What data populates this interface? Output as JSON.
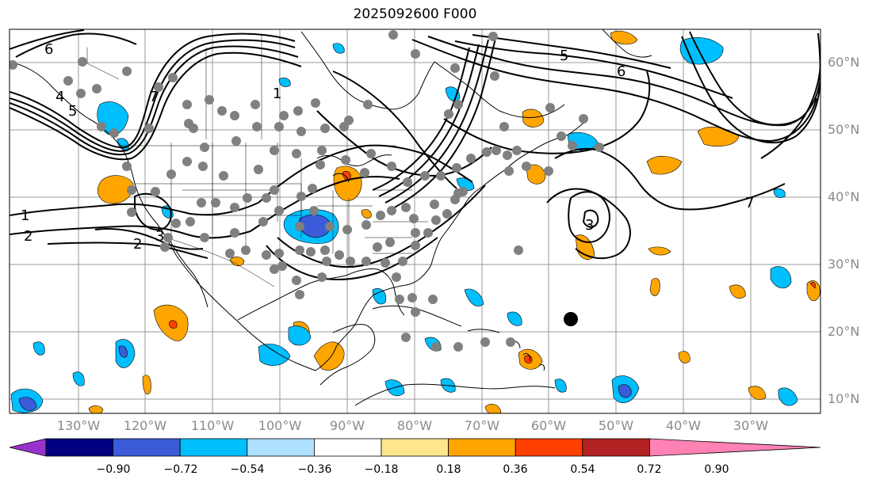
{
  "title": "2025092600 F000",
  "map": {
    "projection": "Mercator",
    "extent": {
      "lon_min": -143,
      "lon_max": -22,
      "lat_min": 8,
      "lat_max": 65
    },
    "lat_labels": [
      "10°N",
      "20°N",
      "30°N",
      "40°N",
      "50°N",
      "60°N"
    ],
    "lon_labels": [
      "130°W",
      "120°W",
      "110°W",
      "100°W",
      "90°W",
      "80°W",
      "70°W",
      "60°W",
      "50°W",
      "40°W",
      "30°W"
    ],
    "contour_labels": [
      "1",
      "2",
      "3",
      "4",
      "5",
      "6",
      "7",
      "1",
      "2",
      "3",
      "5",
      "6",
      "7"
    ],
    "contour_color": "#000000",
    "gridline_color": "#999999",
    "station_marker_color": "#808080",
    "black_dot_marker": {
      "lon": -56.4,
      "lat": 21.7
    }
  },
  "colorbar": {
    "ticks": [
      "−0.90",
      "−0.72",
      "−0.54",
      "−0.36",
      "−0.18",
      "0.18",
      "0.36",
      "0.54",
      "0.72",
      "0.90"
    ],
    "colors": [
      "#9932CC",
      "#000080",
      "#3B5BD9",
      "#00BFFF",
      "#B0E0FF",
      "#FFFFFF",
      "#FFE68C",
      "#FFA500",
      "#FF4000",
      "#B22222",
      "#FF82B4"
    ]
  }
}
